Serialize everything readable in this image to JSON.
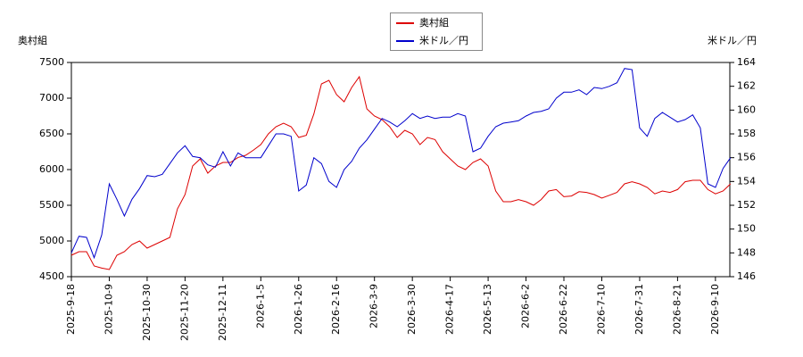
{
  "chart_data": {
    "type": "line",
    "y_label": "奥村組",
    "y2_label": "米ドル／円",
    "legend": "top",
    "categories": [
      "2025-9-18",
      null,
      null,
      null,
      null,
      "2025-10-9",
      null,
      null,
      null,
      null,
      "2025-10-30",
      null,
      null,
      null,
      null,
      "2025-11-20",
      null,
      null,
      null,
      null,
      "2025-12-11",
      null,
      null,
      null,
      null,
      "2026-1-5",
      null,
      null,
      null,
      null,
      "2026-1-26",
      null,
      null,
      null,
      null,
      "2026-2-16",
      null,
      null,
      null,
      null,
      "2026-3-9",
      null,
      null,
      null,
      null,
      "2026-3-30",
      null,
      null,
      null,
      null,
      "2026-4-17",
      null,
      null,
      null,
      null,
      "2026-5-13",
      null,
      null,
      null,
      null,
      "2026-6-2",
      null,
      null,
      null,
      null,
      "2026-6-22",
      null,
      null,
      null,
      null,
      "2026-7-10",
      null,
      null,
      null,
      null,
      "2026-7-31",
      null,
      null,
      null,
      null,
      "2026-8-21",
      null,
      null,
      null,
      null,
      "2026-9-10",
      null,
      null
    ],
    "series": [
      {
        "name": "奥村組",
        "color": "#dd0000",
        "axis": "y",
        "values": [
          4800,
          4850,
          4850,
          4650,
          4620,
          4600,
          4800,
          4850,
          4950,
          5000,
          4900,
          4950,
          5000,
          5050,
          5450,
          5650,
          6050,
          6150,
          5950,
          6050,
          6100,
          6100,
          6170,
          6200,
          6270,
          6350,
          6500,
          6600,
          6650,
          6600,
          6450,
          6480,
          6780,
          7200,
          7250,
          7050,
          6950,
          7150,
          7300,
          6850,
          6750,
          6700,
          6600,
          6450,
          6550,
          6500,
          6350,
          6450,
          6420,
          6250,
          6150,
          6050,
          6000,
          6100,
          6150,
          6050,
          5700,
          5550,
          5550,
          5580,
          5550,
          5500,
          5580,
          5700,
          5720,
          5620,
          5630,
          5690,
          5680,
          5650,
          5600,
          5640,
          5680,
          5800,
          5830,
          5800,
          5750,
          5660,
          5700,
          5680,
          5720,
          5830,
          5850,
          5850,
          5720,
          5660,
          5700,
          5800
        ]
      },
      {
        "name": "米ドル／円",
        "color": "#0000cc",
        "axis": "y2",
        "values": [
          148,
          149.4,
          149.3,
          147.6,
          149.5,
          153.8,
          152.5,
          151.1,
          152.5,
          153.4,
          154.5,
          154.4,
          154.6,
          155.5,
          156.4,
          157,
          156.1,
          156,
          155.4,
          155.2,
          156.5,
          155.3,
          156.4,
          156,
          156,
          156,
          157,
          158,
          158,
          157.8,
          153.2,
          153.7,
          156,
          155.5,
          154,
          153.5,
          155,
          155.7,
          156.8,
          157.5,
          158.4,
          159.3,
          159,
          158.6,
          159.1,
          159.7,
          159.3,
          159.5,
          159.3,
          159.4,
          159.4,
          159.7,
          159.5,
          156.5,
          156.8,
          157.8,
          158.6,
          158.9,
          159,
          159.1,
          159.5,
          159.8,
          159.9,
          160.1,
          161,
          161.5,
          161.5,
          161.7,
          161.3,
          161.9,
          161.8,
          162,
          162.3,
          163.5,
          163.4,
          158.5,
          157.8,
          159.3,
          159.8,
          159.4,
          159,
          159.2,
          159.6,
          158.5,
          153.8,
          153.5,
          155.1,
          156
        ]
      }
    ],
    "ylim": [
      4500,
      7500
    ],
    "yticks": [
      4500,
      5000,
      5500,
      6000,
      6500,
      7000,
      7500
    ],
    "y2lim": [
      146,
      164
    ],
    "y2ticks": [
      146,
      148,
      150,
      152,
      154,
      156,
      158,
      160,
      162,
      164
    ],
    "grid": false
  }
}
